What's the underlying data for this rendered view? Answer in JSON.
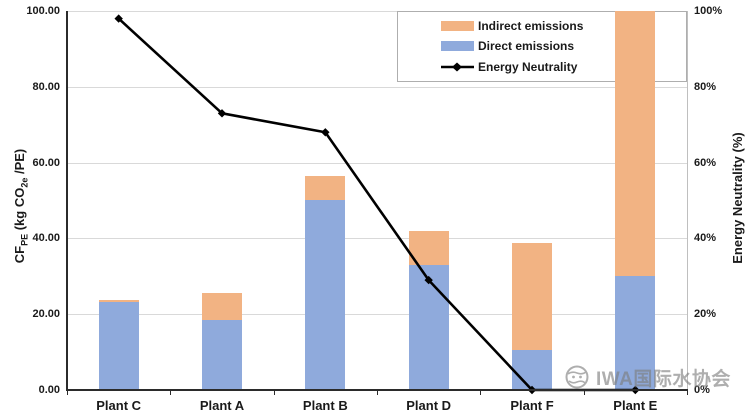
{
  "chart_data": {
    "type": "bar",
    "subtype": "stacked-bars-with-line",
    "categories": [
      "Plant C",
      "Plant A",
      "Plant B",
      "Plant D",
      "Plant F",
      "Plant E"
    ],
    "series": [
      {
        "name": "Direct emissions",
        "color": "#8FAADC",
        "values": [
          23.3,
          18.6,
          50.1,
          33.0,
          10.5,
          30.0
        ]
      },
      {
        "name": "Indirect emissions",
        "color": "#F2B383",
        "values": [
          0.4,
          7.1,
          6.4,
          9.0,
          28.2,
          70.0
        ]
      }
    ],
    "line_series": {
      "name": "Energy Neutrality",
      "color": "#000000",
      "marker": "diamond",
      "values": [
        98,
        73,
        68,
        29,
        0,
        0
      ]
    },
    "left_axis": {
      "title": {
        "pre": "CF",
        "sub1": "PE",
        "mid": " (kg CO",
        "sub2": "2e",
        "post": " /PE)"
      },
      "ticks": [
        "0.00",
        "20.00",
        "40.00",
        "60.00",
        "80.00",
        "100.00"
      ],
      "tick_values": [
        0,
        20,
        40,
        60,
        80,
        100
      ],
      "range": [
        0,
        100
      ]
    },
    "right_axis": {
      "title": "Energy Neutrality (%)",
      "ticks": [
        "0%",
        "20%",
        "40%",
        "60%",
        "80%",
        "100%"
      ],
      "tick_values": [
        0,
        20,
        40,
        60,
        80,
        100
      ],
      "range": [
        0,
        100
      ]
    },
    "grid": true,
    "legend_position": "top-right",
    "note": "Plant E stacked bar is clipped at the chart top (total reaches axis maximum of 100)"
  },
  "legend": {
    "items": [
      {
        "label": "Indirect emissions",
        "swatch_color": "#F2B383",
        "swatch_type": "rect"
      },
      {
        "label": "Direct emissions",
        "swatch_color": "#8FAADC",
        "swatch_type": "rect"
      },
      {
        "label": "Energy Neutrality",
        "swatch_color": "#000000",
        "swatch_type": "line-diamond"
      }
    ]
  },
  "watermark": {
    "text": "IWA国际水协会",
    "logo_icon": "iwa-globe-logo",
    "color": "#7d7d7d"
  },
  "colors": {
    "direct": "#8FAADC",
    "indirect": "#F2B383",
    "line": "#000000",
    "gridline": "#d9d9d9",
    "axis": "#2b2b2b",
    "background": "#ffffff"
  }
}
